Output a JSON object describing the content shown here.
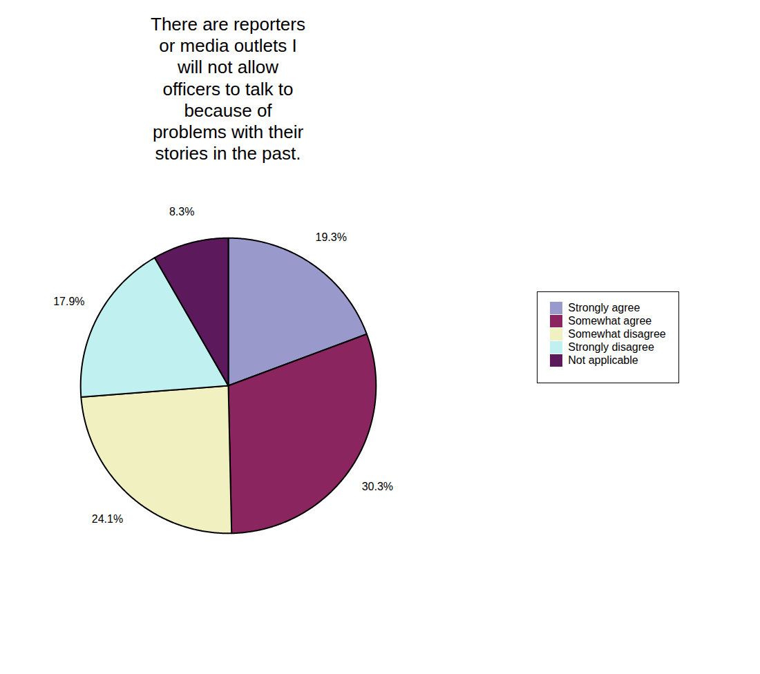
{
  "chart_data": {
    "type": "pie",
    "title": "There are reporters\nor media outlets I\nwill not allow\nofficers to talk to\nbecause of\nproblems with their\nstories in the past.",
    "categories": [
      "Strongly agree",
      "Somewhat agree",
      "Somewhat disagree",
      "Strongly disagree",
      "Not applicable"
    ],
    "values": [
      19.3,
      30.3,
      24.1,
      17.9,
      8.3
    ],
    "value_labels": [
      "19.3%",
      "30.3%",
      "24.1%",
      "17.9%",
      "8.3%"
    ],
    "colors": [
      "#9999cc",
      "#8b2560",
      "#f0f0c0",
      "#c0f0f0",
      "#5c1a5c"
    ],
    "data_labels": true,
    "legend": "right"
  }
}
